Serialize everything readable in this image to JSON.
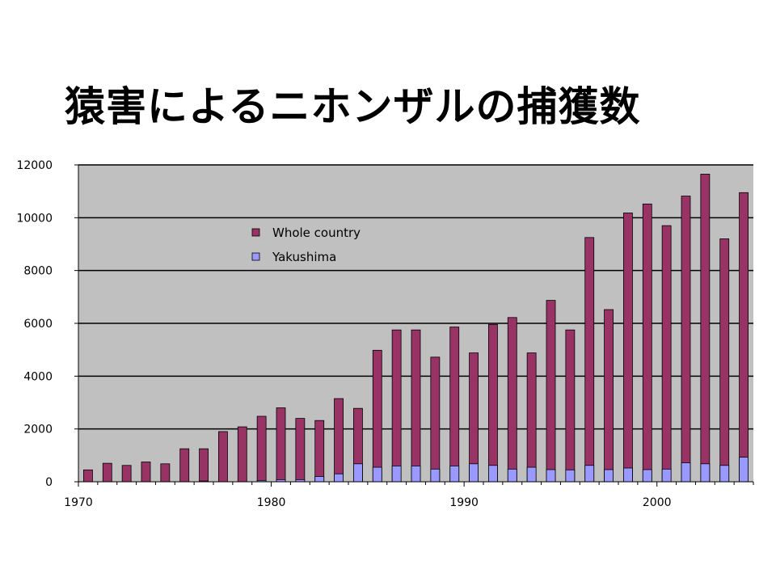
{
  "title": "猿害によるニホンザルの捕獲数",
  "chart_data": {
    "type": "bar",
    "title": "猿害によるニホンザルの捕獲数",
    "xlabel": "",
    "ylabel": "",
    "ylim": [
      0,
      12000
    ],
    "yticks": [
      0,
      2000,
      4000,
      6000,
      8000,
      10000,
      12000
    ],
    "xlim": [
      1970,
      2005
    ],
    "xticks": [
      1970,
      1980,
      1990,
      2000
    ],
    "grid": true,
    "legend_position": "upper-left-inside",
    "x": [
      1970,
      1971,
      1972,
      1973,
      1974,
      1975,
      1976,
      1977,
      1978,
      1979,
      1980,
      1981,
      1982,
      1983,
      1984,
      1985,
      1986,
      1987,
      1988,
      1989,
      1990,
      1991,
      1992,
      1993,
      1994,
      1995,
      1996,
      1997,
      1998,
      1999,
      2000,
      2001,
      2002,
      2003,
      2004
    ],
    "series": [
      {
        "name": "Whole country",
        "color": "#993366",
        "values": [
          450,
          700,
          620,
          750,
          680,
          1250,
          1250,
          1900,
          2080,
          2480,
          2800,
          2400,
          2320,
          3150,
          2780,
          4980,
          5750,
          5750,
          4720,
          5860,
          4880,
          5960,
          6220,
          4880,
          6870,
          5750,
          9250,
          6520,
          10180,
          10520,
          9700,
          10820,
          11650,
          9200,
          10950
        ]
      },
      {
        "name": "Yakushima",
        "color": "#9999ff",
        "values": [
          0,
          0,
          0,
          0,
          0,
          0,
          30,
          0,
          0,
          50,
          80,
          80,
          200,
          300,
          680,
          550,
          600,
          600,
          480,
          600,
          680,
          620,
          480,
          550,
          460,
          450,
          620,
          460,
          520,
          460,
          480,
          720,
          680,
          620,
          930
        ]
      }
    ]
  }
}
